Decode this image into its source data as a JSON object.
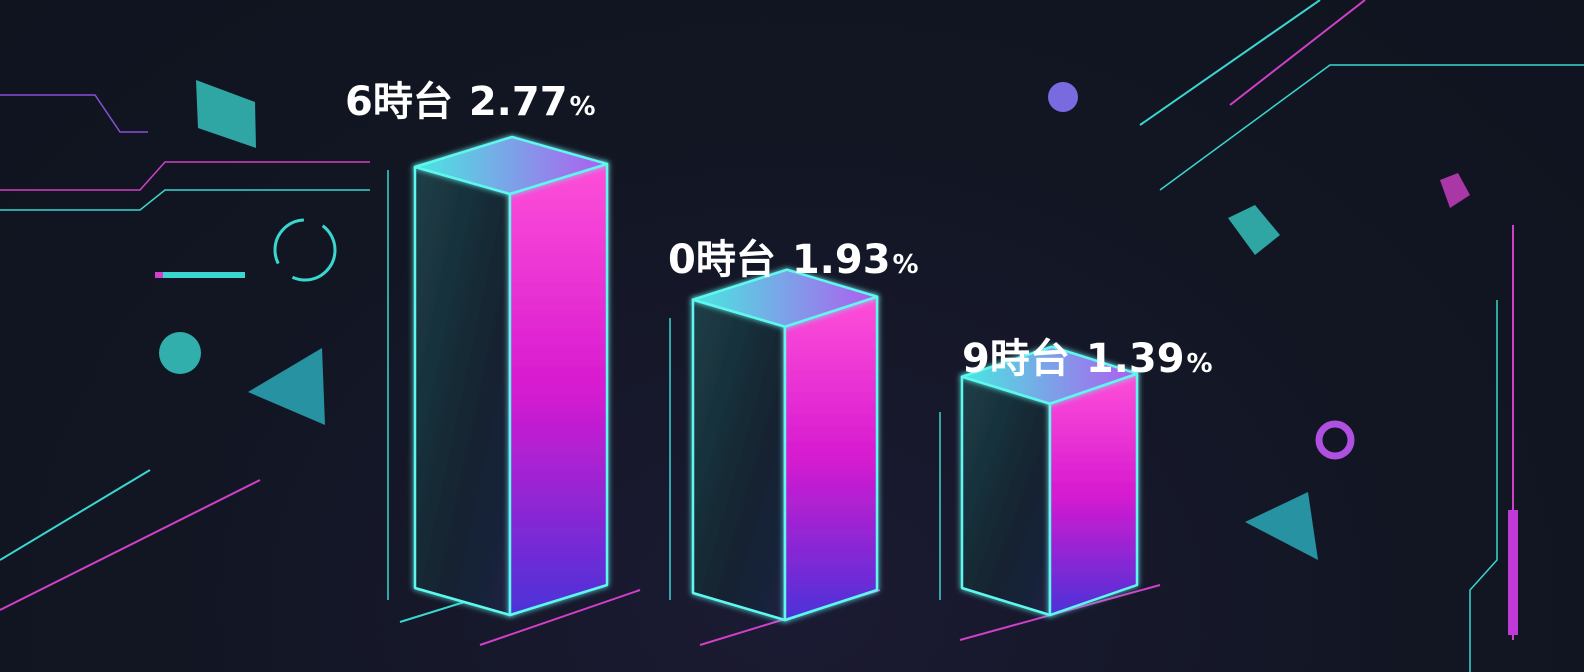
{
  "chart_data": {
    "type": "bar",
    "categories": [
      "6時台",
      "0時台",
      "9時台"
    ],
    "values": [
      2.77,
      1.93,
      1.39
    ],
    "value_labels": [
      "2.77",
      "1.93",
      "1.39"
    ],
    "unit": "%",
    "title": "",
    "xlabel": "",
    "ylabel": "",
    "grid": false,
    "style": "3d-glass-columns",
    "colors": {
      "teal": "#3ef0e0",
      "magenta": "#ff2fd0",
      "violet": "#6a3cf0",
      "background": "#111827"
    }
  }
}
